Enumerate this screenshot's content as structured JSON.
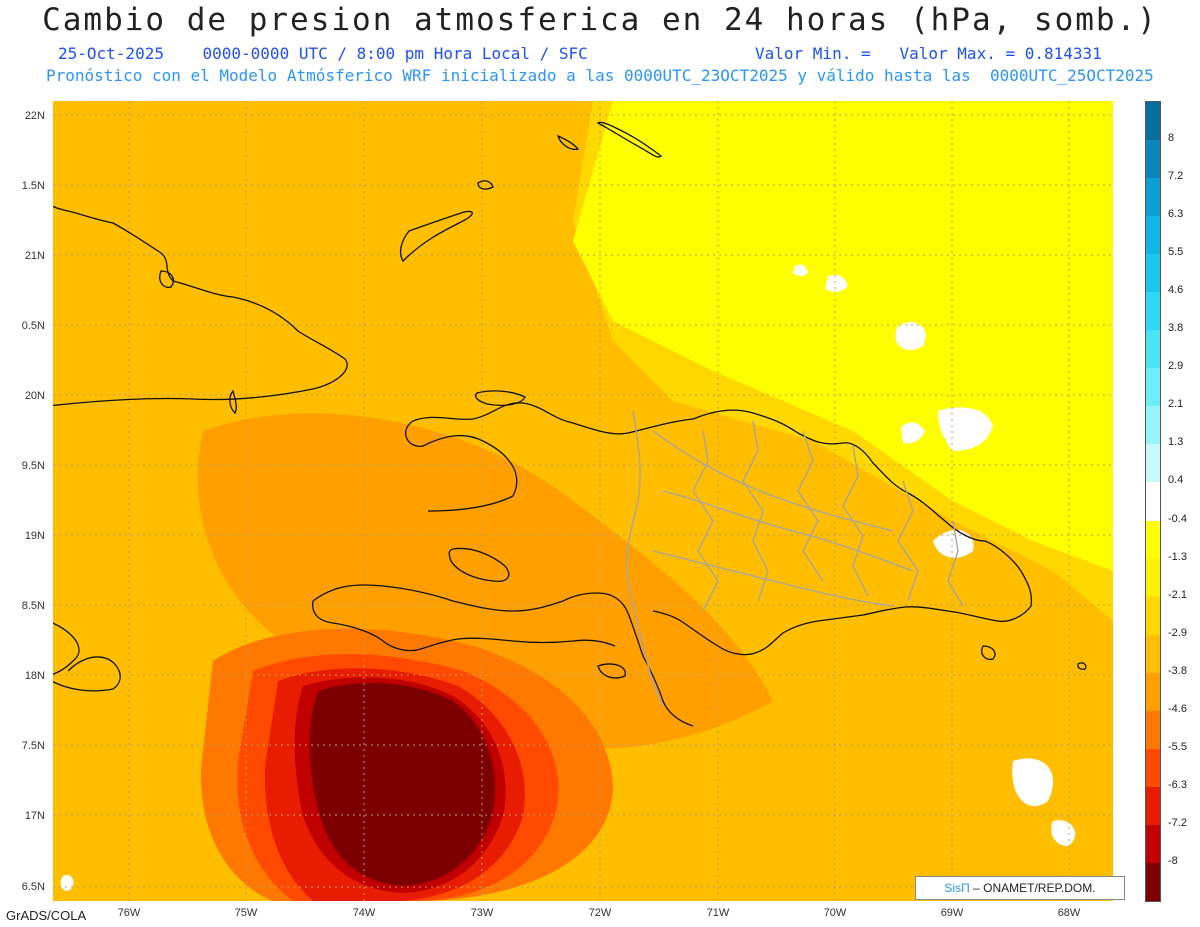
{
  "header": {
    "title": "Cambio de presion atmosferica en 24 horas (hPa, somb.)",
    "date": "25-Oct-2025",
    "time_range": "0000-0000 UTC / 8:00 pm Hora Local / SFC",
    "valor_min": "Valor Min. =",
    "valor_max": "Valor Max. = 0.814331",
    "forecast": "Pronóstico con el Modelo Atmósferico WRF inicializado a las 0000UTC_23OCT2025 y válido hasta las  0000UTC_25OCT2025"
  },
  "axes": {
    "lat": [
      "22N",
      "1.5N",
      "21N",
      "0.5N",
      "20N",
      "9.5N",
      "19N",
      "8.5N",
      "18N",
      "7.5N",
      "17N",
      "6.5N"
    ],
    "lon": [
      "76W",
      "75W",
      "74W",
      "73W",
      "72W",
      "71W",
      "70W",
      "69W",
      "68W"
    ]
  },
  "colorbar": {
    "labels": [
      "8",
      "7.2",
      "6.3",
      "5.5",
      "4.6",
      "3.8",
      "2.9",
      "2.1",
      "1.3",
      "0.4",
      "-0.4",
      "-1.3",
      "-2.1",
      "-2.9",
      "-3.8",
      "-4.6",
      "-5.5",
      "-6.3",
      "-7.2",
      "-8"
    ],
    "colors": [
      "#0a6e9a",
      "#0b86b8",
      "#0aa0d2",
      "#10b6e4",
      "#1cc7ee",
      "#2ed8f4",
      "#4ae4f6",
      "#6eeef8",
      "#98f4fa",
      "#c8fafc",
      "#ffffff",
      "#ffff00",
      "#fff000",
      "#ffd800",
      "#ffbe00",
      "#ffa000",
      "#ff7800",
      "#ff4a00",
      "#e81c00",
      "#c00000",
      "#7d0000"
    ]
  },
  "credits": {
    "grads": "GrADS/COLA",
    "brand_symbol": "SisΠ",
    "brand": " – ONAMET/REP.DOM."
  }
}
